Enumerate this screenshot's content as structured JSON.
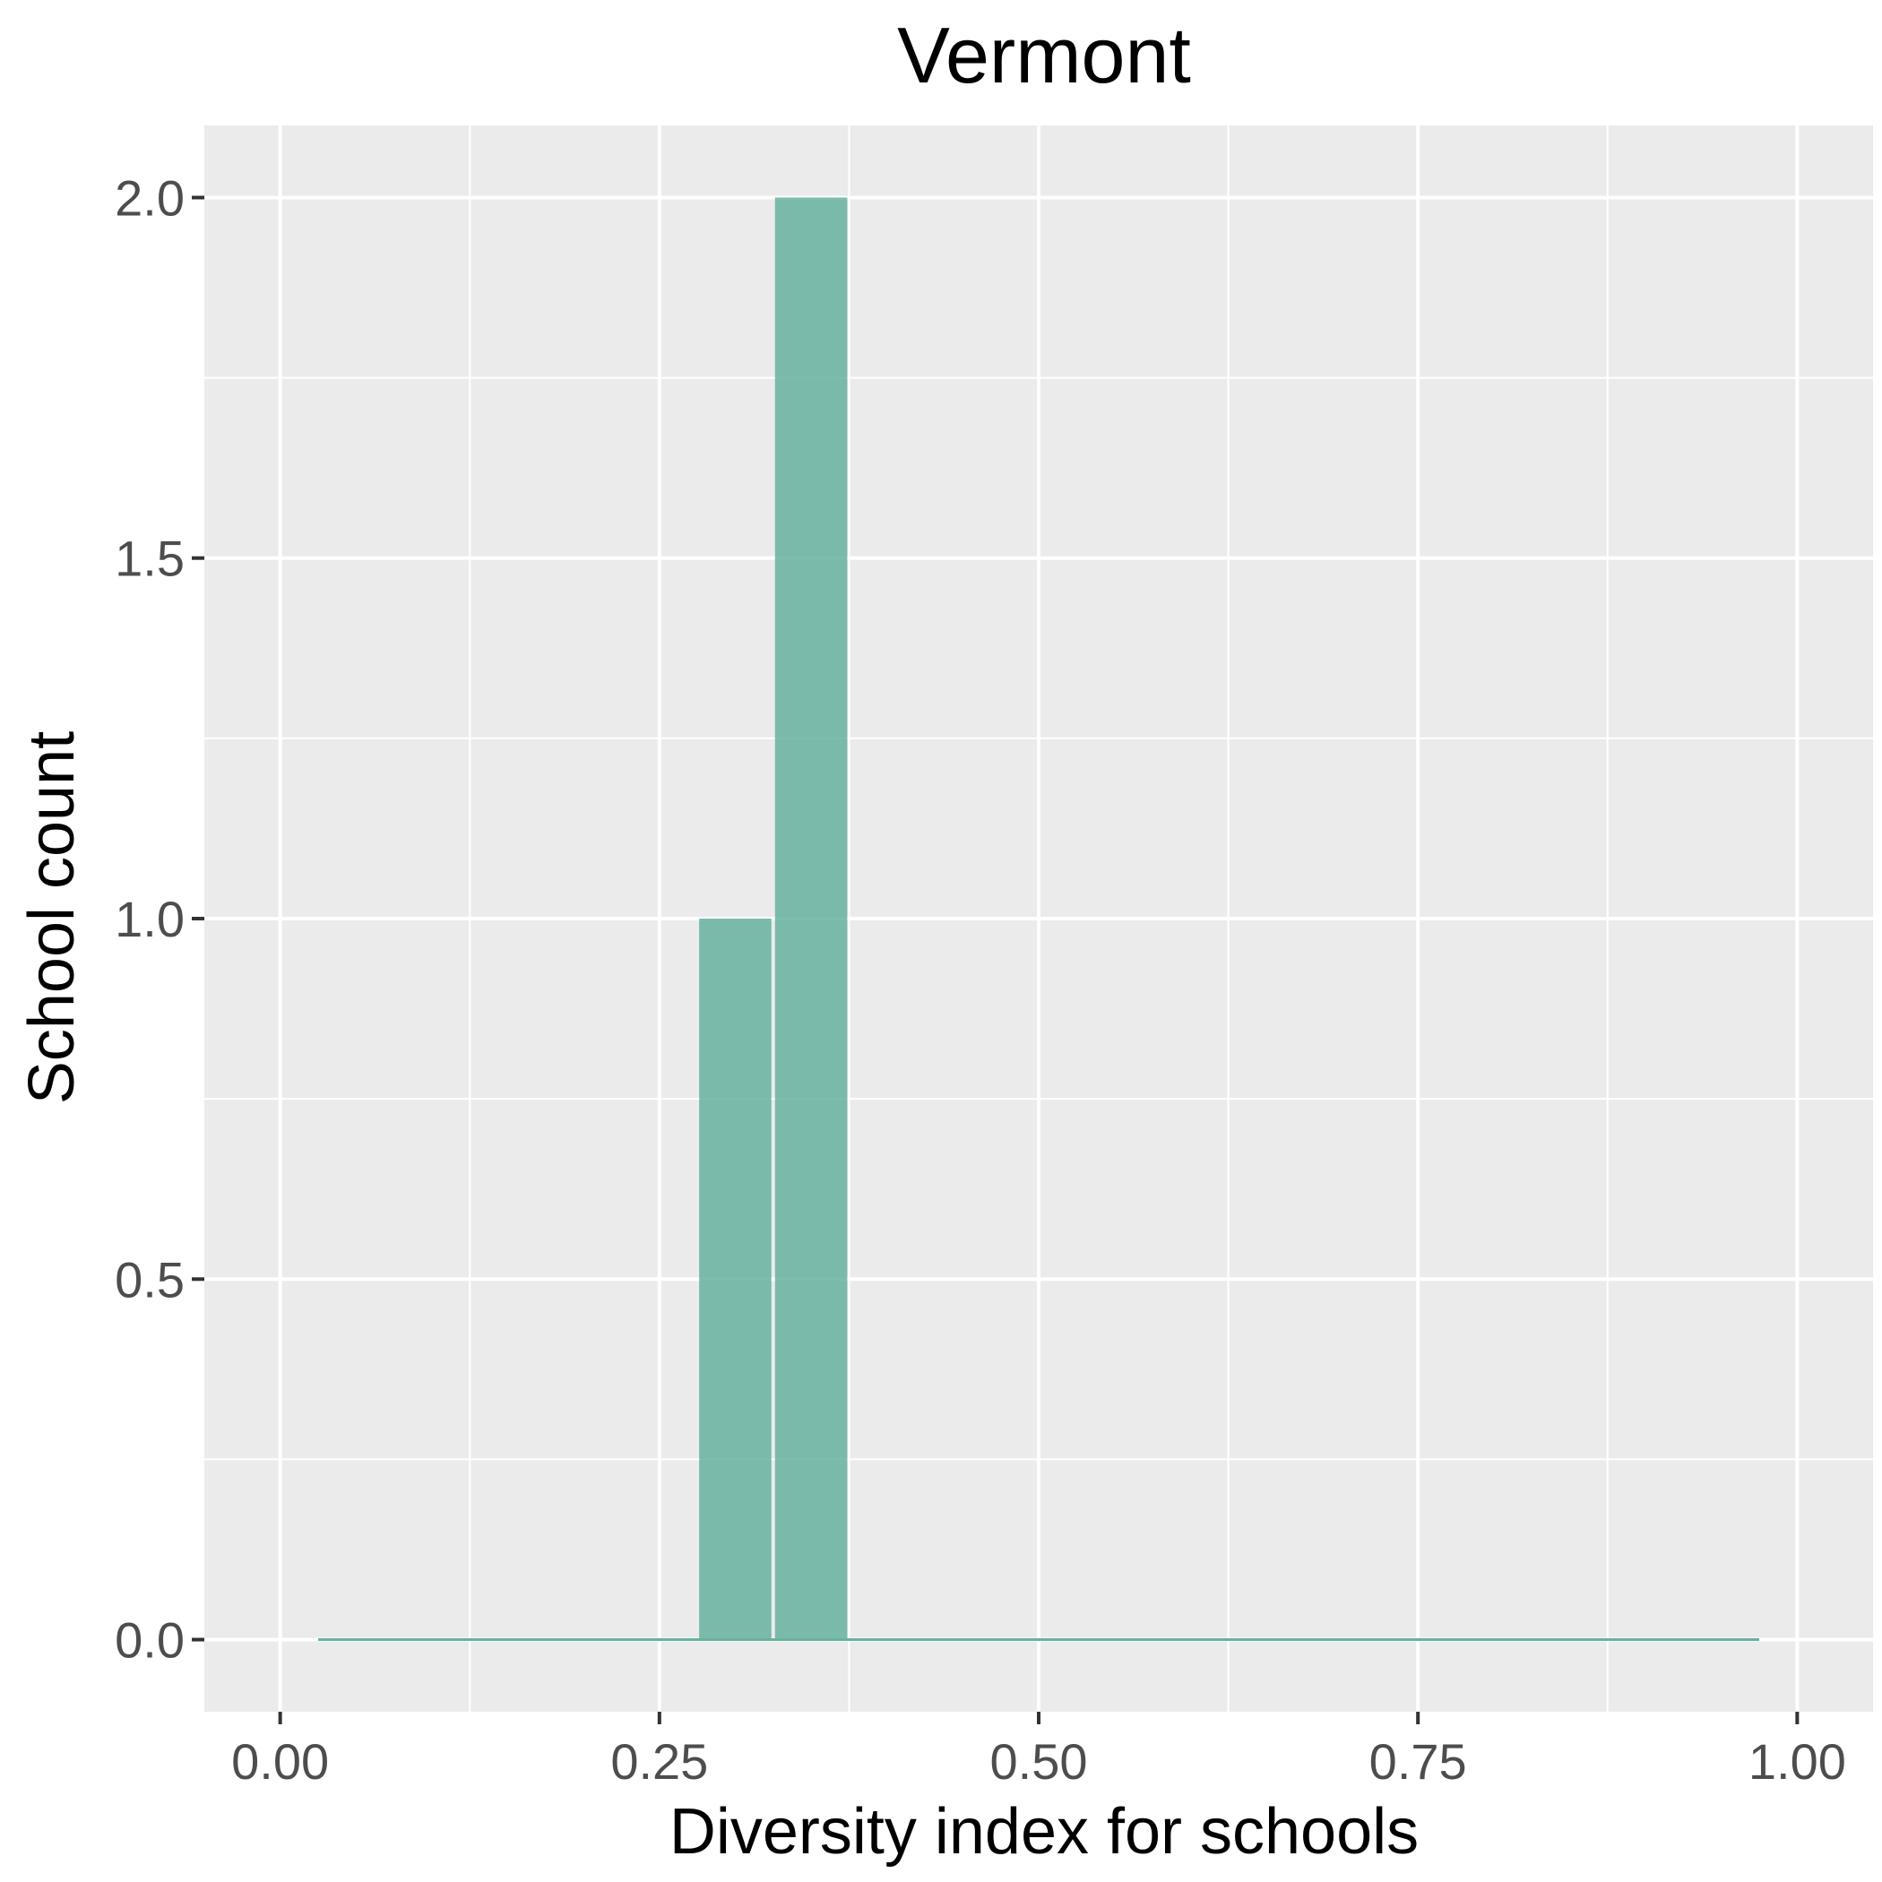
{
  "chart_data": {
    "type": "bar",
    "title": "Vermont",
    "xlabel": "Diversity index for schools",
    "ylabel": "School count",
    "xlim": [
      -0.05,
      1.05
    ],
    "ylim": [
      -0.1,
      2.1
    ],
    "x_ticks": [
      "0.00",
      "0.25",
      "0.50",
      "0.75",
      "1.00"
    ],
    "y_ticks": [
      "0.0",
      "0.5",
      "1.0",
      "1.5",
      "2.0"
    ],
    "bin_width": 0.05,
    "bins": [
      {
        "x0": 0.275,
        "x1": 0.325,
        "count": 1
      },
      {
        "x0": 0.325,
        "x1": 0.375,
        "count": 2
      }
    ],
    "baseline_range": [
      0.025,
      0.975
    ],
    "grid": true,
    "colors": {
      "panel": "#ebebeb",
      "grid": "#ffffff",
      "bar": "#66b2a0"
    }
  }
}
